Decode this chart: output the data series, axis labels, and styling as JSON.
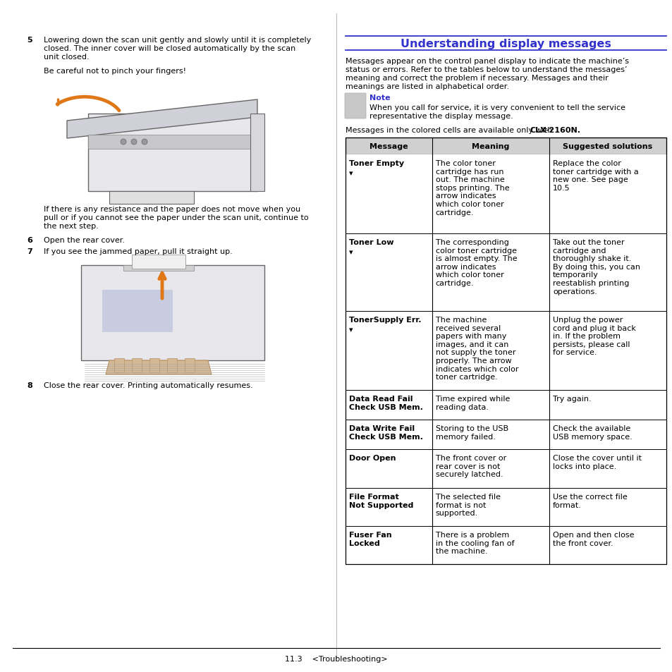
{
  "page_bg": "#ffffff",
  "title": "Understanding display messages",
  "title_color": "#3333cc",
  "title_line_color": "#3333cc",
  "left_step5_bold": "5",
  "left_step5_text": "Lowering down the scan unit gently and slowly until it is completely\nclosed. The inner cover will be closed automatically by the scan\nunit closed.",
  "left_caution": "Be careful not to pinch your fingers!",
  "left_step6_bold": "6",
  "left_step6_text": "Open the rear cover.",
  "left_step7_bold": "7",
  "left_step7_text": "If you see the jammed paper, pull it straight up.",
  "left_step8_bold": "8",
  "left_step8_text": "Close the rear cover. Printing automatically resumes.",
  "left_middle_text": "If there is any resistance and the paper does not move when you\npull or if you cannot see the paper under the scan unit, continue to\nthe next step.",
  "right_intro": "Messages appear on the control panel display to indicate the machine’s\nstatus or errors. Refer to the tables below to understand the messages’\nmeaning and correct the problem if necessary. Messages and their\nmeanings are listed in alphabetical order.",
  "note_label": "Note",
  "note_label_color": "#3333cc",
  "note_text": "When you call for service, it is very convenient to tell the service\nrepresentative the display message.",
  "clx_note": "Messages in the colored cells are available only with ",
  "clx_bold": "CLX-2160N",
  "clx_end": ".",
  "col_headers": [
    "Message",
    "Meaning",
    "Suggested solutions"
  ],
  "rows": [
    {
      "msg_bold": "Toner Empty",
      "msg_rest": "\n▾",
      "meaning": "The color toner\ncartridge has run\nout. The machine\nstops printing. The\narrow indicates\nwhich color toner\ncartridge.",
      "solution": "Replace the color\ntoner cartridge with a\nnew one. See page\n10.5"
    },
    {
      "msg_bold": "Toner Low",
      "msg_rest": "\n▾",
      "meaning": "The corresponding\ncolor toner cartridge\nis almost empty. The\narrow indicates\nwhich color toner\ncartridge.",
      "solution": "Take out the toner\ncartridge and\nthoroughly shake it.\nBy doing this, you can\ntemporarily\nreestablish printing\noperations."
    },
    {
      "msg_bold": "TonerSupply Err.",
      "msg_rest": "\n▾",
      "meaning": "The machine\nreceived several\npapers with many\nimages, and it can\nnot supply the toner\nproperly. The arrow\nindicates which color\ntoner cartridge.",
      "solution": "Unplug the power\ncord and plug it back\nin. If the problem\npersists, please call\nfor service."
    },
    {
      "msg_bold": "Data Read Fail\nCheck USB Mem.",
      "msg_rest": "",
      "meaning": "Time expired while\nreading data.",
      "solution": "Try again."
    },
    {
      "msg_bold": "Data Write Fail\nCheck USB Mem.",
      "msg_rest": "",
      "meaning": "Storing to the USB\nmemory failed.",
      "solution": "Check the available\nUSB memory space."
    },
    {
      "msg_bold": "Door Open",
      "msg_rest": "",
      "meaning": "The front cover or\nrear cover is not\nsecurely latched.",
      "solution": "Close the cover until it\nlocks into place."
    },
    {
      "msg_bold": "File Format\nNot Supported",
      "msg_rest": "",
      "meaning": "The selected file\nformat is not\nsupported.",
      "solution": "Use the correct file\nformat."
    },
    {
      "msg_bold": "Fuser Fan\nLocked",
      "msg_rest": "",
      "meaning": "There is a problem\nin the cooling fan of\nthe machine.",
      "solution": "Open and then close\nthe front cover."
    }
  ],
  "footer_text": "11.3",
  "footer_sub": "<Troubleshooting>"
}
